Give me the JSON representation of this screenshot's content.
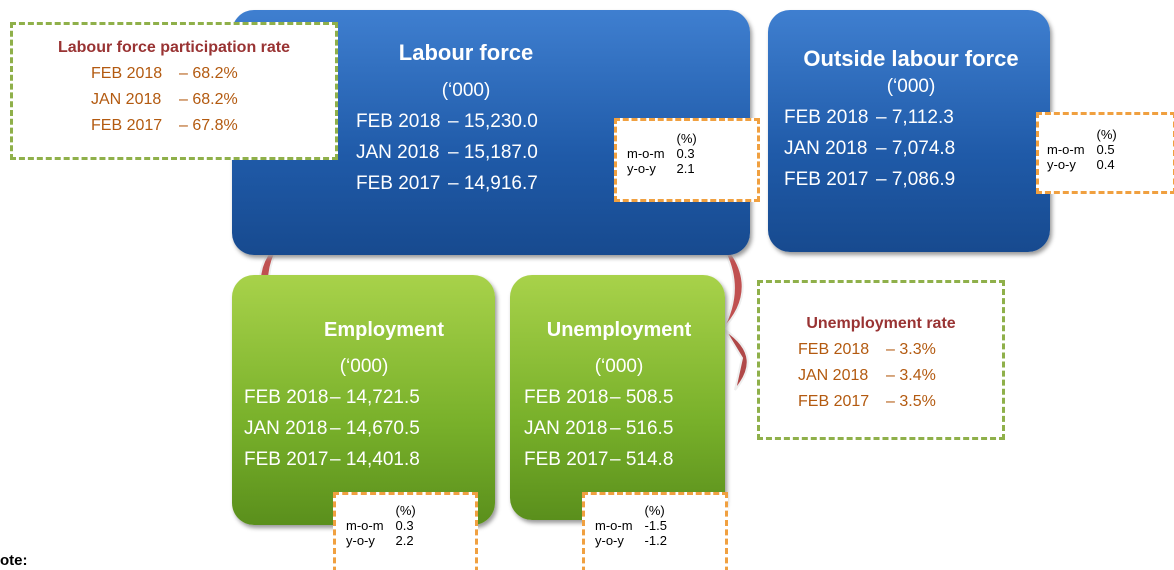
{
  "participation_rate": {
    "title": "Labour force participation rate",
    "rows": [
      [
        "FEB 2018",
        "– 68.2%"
      ],
      [
        "JAN 2018",
        "– 68.2%"
      ],
      [
        "FEB 2017",
        "– 67.8%"
      ]
    ]
  },
  "labour_force": {
    "title": "Labour force",
    "unit": "(‘000)",
    "rows": [
      [
        "FEB 2018",
        "– 15,230.0"
      ],
      [
        "JAN 2018",
        "– 15,187.0"
      ],
      [
        "FEB 2017",
        "– 14,916.7"
      ]
    ],
    "change": {
      "header": "(%)",
      "rows": [
        [
          "m-o-m",
          "0.3"
        ],
        [
          "y-o-y",
          "2.1"
        ]
      ]
    }
  },
  "outside_labour_force": {
    "title": "Outside labour force",
    "unit": "(‘000)",
    "rows": [
      [
        "FEB 2018",
        "– 7,112.3"
      ],
      [
        "JAN 2018",
        "– 7,074.8"
      ],
      [
        "FEB 2017",
        "– 7,086.9"
      ]
    ],
    "change": {
      "header": "(%)",
      "rows": [
        [
          "m-o-m",
          "0.5"
        ],
        [
          "y-o-y",
          "0.4"
        ]
      ]
    }
  },
  "employment": {
    "title": "Employment",
    "unit": "(‘000)",
    "rows": [
      [
        "FEB 2018",
        "– 14,721.5"
      ],
      [
        "JAN 2018",
        "– 14,670.5"
      ],
      [
        "FEB 2017",
        "– 14,401.8"
      ]
    ],
    "change": {
      "header": "(%)",
      "rows": [
        [
          "m-o-m",
          "0.3"
        ],
        [
          "y-o-y",
          "2.2"
        ]
      ]
    }
  },
  "unemployment": {
    "title": "Unemployment",
    "unit": "(‘000)",
    "rows": [
      [
        "FEB 2018",
        "– 508.5"
      ],
      [
        "JAN 2018",
        "– 516.5"
      ],
      [
        "FEB 2017",
        "– 514.8"
      ]
    ],
    "change": {
      "header": "(%)",
      "rows": [
        [
          "m-o-m",
          "-1.5"
        ],
        [
          "y-o-y",
          "-1.2"
        ]
      ]
    }
  },
  "unemployment_rate": {
    "title": "Unemployment rate",
    "rows": [
      [
        "FEB 2018",
        "– 3.3%"
      ],
      [
        "JAN 2018",
        "– 3.4%"
      ],
      [
        "FEB 2017",
        "– 3.5%"
      ]
    ]
  },
  "note": "ote:"
}
